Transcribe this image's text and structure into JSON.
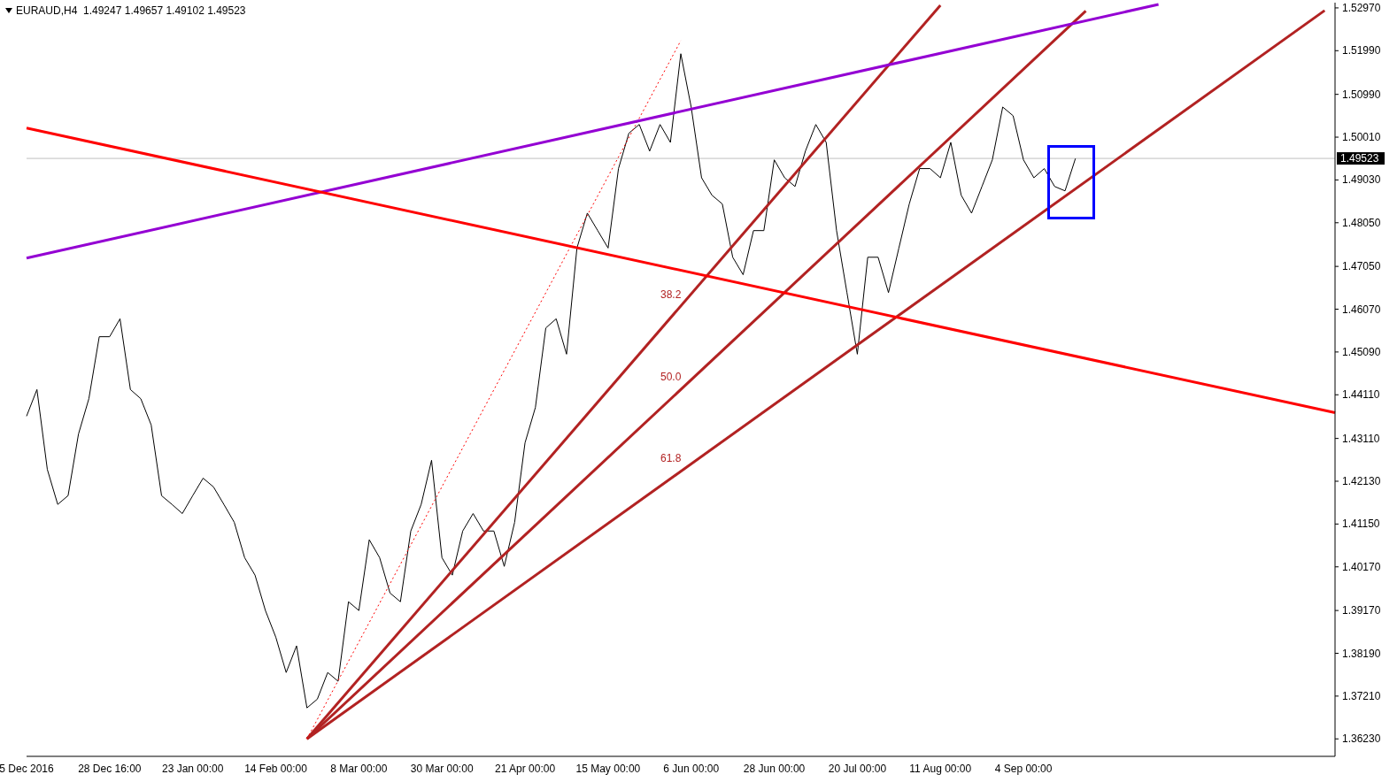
{
  "chart_data": {
    "type": "line",
    "title": "EURAUD,H4  1.49247 1.49657 1.49102 1.49523",
    "categories": [
      "5 Dec 2016",
      null,
      null,
      null,
      null,
      null,
      null,
      null,
      "28 Dec 16:00",
      null,
      null,
      null,
      null,
      null,
      null,
      null,
      "23 Jan 00:00",
      null,
      null,
      null,
      null,
      null,
      null,
      null,
      "14 Feb 00:00",
      null,
      null,
      null,
      null,
      null,
      null,
      null,
      "8 Mar 00:00",
      null,
      null,
      null,
      null,
      null,
      null,
      null,
      "30 Mar 00:00",
      null,
      null,
      null,
      null,
      null,
      null,
      null,
      "21 Apr 00:00",
      null,
      null,
      null,
      null,
      null,
      null,
      null,
      "15 May 00:00",
      null,
      null,
      null,
      null,
      null,
      null,
      null,
      "6 Jun 00:00",
      null,
      null,
      null,
      null,
      null,
      null,
      null,
      "28 Jun 00:00",
      null,
      null,
      null,
      null,
      null,
      null,
      null,
      "20 Jul 00:00",
      null,
      null,
      null,
      null,
      null,
      null,
      null,
      "11 Aug 00:00",
      null,
      null,
      null,
      null,
      null,
      null,
      null,
      "4 Sep 00:00",
      null,
      null,
      null,
      null,
      null,
      null,
      null,
      null,
      null,
      null,
      null,
      null,
      null,
      null,
      null,
      null,
      null,
      null,
      null,
      null,
      null,
      null,
      null,
      null,
      null,
      null,
      null,
      null,
      null,
      null
    ],
    "series": [
      {
        "color": "#000000",
        "values": [
          1.4362,
          1.4423,
          1.424,
          1.416,
          1.418,
          1.4321,
          1.4402,
          1.4544,
          1.4544,
          1.4585,
          1.4423,
          1.4402,
          1.4342,
          1.418,
          1.416,
          1.4139,
          1.418,
          1.422,
          1.42,
          1.416,
          1.4119,
          1.4038,
          1.3998,
          1.3917,
          1.3856,
          1.3775,
          1.3836,
          1.3694,
          1.3714,
          1.3775,
          1.3755,
          1.3937,
          1.3917,
          1.4079,
          1.4038,
          1.3957,
          1.3937,
          1.4099,
          1.416,
          1.4261,
          1.4038,
          1.3998,
          1.4099,
          1.4139,
          1.4099,
          1.4099,
          1.4018,
          1.4119,
          1.4301,
          1.4382,
          1.4564,
          1.4585,
          1.4504,
          1.4747,
          1.4827,
          1.4787,
          1.4747,
          1.4929,
          1.501,
          1.503,
          1.4969,
          1.503,
          1.4989,
          1.5192,
          1.507,
          1.4908,
          1.4868,
          1.4848,
          1.4726,
          1.4686,
          1.4787,
          1.4787,
          1.4949,
          1.4908,
          1.4888,
          1.4969,
          1.503,
          1.4989,
          1.4787,
          1.4645,
          1.4504,
          1.4726,
          1.4726,
          1.4645,
          1.4747,
          1.4848,
          1.4929,
          1.4929,
          1.4908,
          1.4989,
          1.4868,
          1.4827,
          1.4888,
          1.4949,
          1.507,
          1.505,
          1.4949,
          1.4908,
          1.4929,
          1.4888,
          1.4878,
          1.4952,
          null,
          null,
          null,
          null,
          null,
          null,
          null,
          null,
          null,
          null,
          null,
          null,
          null,
          null,
          null,
          null,
          null,
          null,
          null,
          null,
          null,
          null,
          null,
          null,
          null
        ]
      },
      {
        "color": "#b22222",
        "values": [
          null,
          null,
          null,
          null,
          null,
          null,
          null,
          null,
          null,
          null,
          null,
          null,
          null,
          null,
          null,
          null,
          null,
          null,
          null,
          null,
          null,
          null,
          null,
          null,
          null,
          null,
          null,
          1.3623,
          null,
          null,
          null,
          null,
          null,
          null,
          null,
          null,
          null,
          null,
          null,
          null,
          null,
          null,
          null,
          null,
          null,
          null,
          null,
          null,
          null,
          null,
          null,
          null,
          null,
          null,
          null,
          null,
          null,
          null,
          null,
          null,
          null,
          null,
          null,
          null,
          null,
          null,
          null,
          null,
          null,
          null,
          null,
          null,
          null,
          null,
          null,
          null,
          null,
          null,
          null,
          null,
          null,
          null,
          null,
          null,
          null,
          null,
          null,
          null,
          1.5303,
          null,
          null,
          null,
          null,
          null,
          null,
          null,
          null,
          null,
          null,
          null,
          null,
          null,
          null,
          null,
          null,
          null,
          null,
          null,
          null,
          null,
          null,
          null,
          null,
          null,
          null,
          null,
          null,
          null,
          null,
          null,
          null,
          null,
          null,
          null,
          null,
          null,
          null
        ]
      },
      {
        "color": "#b22222",
        "values": [
          null,
          null,
          null,
          null,
          null,
          null,
          null,
          null,
          null,
          null,
          null,
          null,
          null,
          null,
          null,
          null,
          null,
          null,
          null,
          null,
          null,
          null,
          null,
          null,
          null,
          null,
          null,
          1.3623,
          null,
          null,
          null,
          null,
          null,
          null,
          null,
          null,
          null,
          null,
          null,
          null,
          null,
          null,
          null,
          null,
          null,
          null,
          null,
          null,
          null,
          null,
          null,
          null,
          null,
          null,
          null,
          null,
          null,
          null,
          null,
          null,
          null,
          null,
          null,
          null,
          null,
          null,
          null,
          null,
          null,
          null,
          null,
          null,
          null,
          null,
          null,
          null,
          null,
          null,
          null,
          null,
          null,
          null,
          null,
          null,
          null,
          null,
          null,
          null,
          null,
          null,
          null,
          null,
          null,
          null,
          null,
          null,
          null,
          null,
          null,
          null,
          null,
          null,
          1.529,
          null,
          null,
          null,
          null,
          null,
          null,
          null,
          null,
          null,
          null,
          null,
          null,
          null,
          null,
          null,
          null,
          null,
          null,
          null,
          null,
          null,
          null,
          null,
          null
        ]
      },
      {
        "color": "#b22222",
        "values": [
          null,
          null,
          null,
          null,
          null,
          null,
          null,
          null,
          null,
          null,
          null,
          null,
          null,
          null,
          null,
          null,
          null,
          null,
          null,
          null,
          null,
          null,
          null,
          null,
          null,
          null,
          null,
          1.3623,
          null,
          null,
          null,
          null,
          null,
          null,
          null,
          null,
          null,
          null,
          null,
          null,
          null,
          null,
          null,
          null,
          null,
          null,
          null,
          null,
          null,
          null,
          null,
          null,
          null,
          null,
          null,
          null,
          null,
          null,
          null,
          null,
          null,
          null,
          null,
          null,
          null,
          null,
          null,
          null,
          null,
          null,
          null,
          null,
          null,
          null,
          null,
          null,
          null,
          null,
          null,
          null,
          null,
          null,
          null,
          null,
          null,
          null,
          null,
          null,
          null,
          null,
          null,
          null,
          null,
          null,
          null,
          null,
          null,
          null,
          null,
          null,
          null,
          null,
          null,
          null,
          null,
          null,
          null,
          null,
          null,
          null,
          null,
          null,
          null,
          null,
          null,
          null,
          null,
          null,
          null,
          null,
          null,
          null,
          null,
          null,
          null,
          1.5291,
          null
        ]
      },
      {
        "color": "#ff0000",
        "line_style": "dotted",
        "values": [
          null,
          null,
          null,
          null,
          null,
          null,
          null,
          null,
          null,
          null,
          null,
          null,
          null,
          null,
          null,
          null,
          null,
          null,
          null,
          null,
          null,
          null,
          null,
          null,
          null,
          null,
          null,
          1.3623,
          null,
          null,
          null,
          null,
          null,
          null,
          null,
          null,
          null,
          null,
          null,
          null,
          null,
          null,
          null,
          null,
          null,
          null,
          null,
          null,
          null,
          null,
          null,
          null,
          null,
          null,
          null,
          null,
          null,
          null,
          null,
          null,
          null,
          null,
          null,
          1.5222,
          null,
          null,
          null,
          null,
          null,
          null,
          null,
          null,
          null,
          null,
          null,
          null,
          null,
          null,
          null,
          null,
          null,
          null,
          null,
          null,
          null,
          null,
          null,
          null,
          null,
          null,
          null,
          null,
          null,
          null,
          null,
          null,
          null,
          null,
          null,
          null,
          null,
          null,
          null,
          null,
          null,
          null,
          null,
          null,
          null,
          null,
          null,
          null,
          null,
          null,
          null,
          null,
          null,
          null,
          null,
          null,
          null,
          null,
          null,
          null,
          null,
          null,
          null
        ]
      },
      {
        "color": "#9400d3",
        "values": [
          1.4724,
          null,
          null,
          null,
          null,
          null,
          null,
          null,
          null,
          null,
          null,
          null,
          null,
          null,
          null,
          null,
          null,
          null,
          null,
          null,
          null,
          null,
          null,
          null,
          null,
          null,
          null,
          null,
          null,
          null,
          null,
          null,
          null,
          null,
          null,
          null,
          null,
          null,
          null,
          null,
          null,
          null,
          null,
          null,
          null,
          null,
          null,
          null,
          null,
          null,
          null,
          null,
          null,
          null,
          null,
          null,
          null,
          null,
          null,
          null,
          null,
          null,
          null,
          null,
          null,
          null,
          null,
          null,
          null,
          null,
          null,
          null,
          null,
          null,
          null,
          null,
          null,
          null,
          null,
          null,
          null,
          null,
          null,
          null,
          null,
          null,
          null,
          null,
          null,
          null,
          null,
          null,
          null,
          null,
          null,
          null,
          null,
          null,
          null,
          null,
          null,
          null,
          null,
          null,
          null,
          null,
          null,
          null,
          null,
          1.5305,
          null,
          null,
          null,
          null,
          null,
          null,
          null,
          null,
          null,
          null,
          null,
          null,
          null,
          null,
          null,
          null,
          null
        ]
      },
      {
        "color": "#ff0000",
        "values": [
          1.5022,
          null,
          null,
          null,
          null,
          null,
          null,
          null,
          null,
          null,
          null,
          null,
          null,
          null,
          null,
          null,
          null,
          null,
          null,
          null,
          null,
          null,
          null,
          null,
          null,
          null,
          null,
          null,
          null,
          null,
          null,
          null,
          null,
          null,
          null,
          null,
          null,
          null,
          null,
          null,
          null,
          null,
          null,
          null,
          null,
          null,
          null,
          null,
          null,
          null,
          null,
          null,
          null,
          null,
          null,
          null,
          null,
          null,
          null,
          null,
          null,
          null,
          null,
          null,
          null,
          null,
          null,
          null,
          null,
          null,
          null,
          null,
          null,
          null,
          null,
          null,
          null,
          null,
          null,
          null,
          null,
          null,
          null,
          null,
          null,
          null,
          null,
          null,
          null,
          null,
          null,
          null,
          null,
          null,
          null,
          null,
          null,
          null,
          null,
          null,
          null,
          null,
          null,
          null,
          null,
          null,
          null,
          null,
          null,
          null,
          null,
          null,
          null,
          null,
          null,
          null,
          null,
          null,
          null,
          null,
          null,
          null,
          null,
          null,
          null,
          null,
          1.437
        ]
      }
    ],
    "ylim": [
      1.3583,
      1.5309
    ],
    "yticks": [
      {
        "value": 1.3623,
        "label": "1.36230"
      },
      {
        "value": 1.3721,
        "label": "1.37210"
      },
      {
        "value": 1.3819,
        "label": "1.38190"
      },
      {
        "value": 1.3917,
        "label": "1.39170"
      },
      {
        "value": 1.4017,
        "label": "1.40170"
      },
      {
        "value": 1.4115,
        "label": "1.41150"
      },
      {
        "value": 1.4213,
        "label": "1.42130"
      },
      {
        "value": 1.4311,
        "label": "1.43110"
      },
      {
        "value": 1.4411,
        "label": "1.44110"
      },
      {
        "value": 1.4509,
        "label": "1.45090"
      },
      {
        "value": 1.4607,
        "label": "1.46070"
      },
      {
        "value": 1.4705,
        "label": "1.47050"
      },
      {
        "value": 1.4805,
        "label": "1.48050"
      },
      {
        "value": 1.4903,
        "label": "1.49030"
      },
      {
        "value": 1.5001,
        "label": "1.50010"
      },
      {
        "value": 1.5099,
        "label": "1.50990"
      },
      {
        "value": 1.5199,
        "label": "1.51990"
      },
      {
        "value": 1.5297,
        "label": "1.52970"
      }
    ],
    "ref_lines": [
      {
        "axis": "y",
        "value": 1.49523,
        "label": "1.49523",
        "color": "#c0c0c0"
      }
    ],
    "annotations": [
      "38.2",
      "50.0",
      "61.8"
    ],
    "grid": false,
    "legend": false,
    "marker": "none",
    "line_style": "solid"
  }
}
